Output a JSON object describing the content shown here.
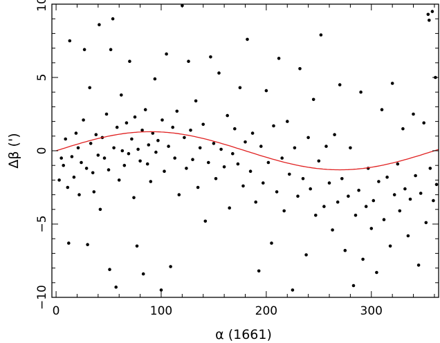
{
  "chart_data": {
    "type": "scatter",
    "xlabel": "α (1661)",
    "ylabel": "Δβ (')",
    "xlim": [
      -4,
      364
    ],
    "ylim": [
      -10,
      10
    ],
    "grid": false,
    "x_ticks": [
      {
        "value": 0,
        "label": "0"
      },
      {
        "value": 100,
        "label": "100"
      },
      {
        "value": 200,
        "label": "200"
      },
      {
        "value": 300,
        "label": "300"
      }
    ],
    "y_ticks": [
      {
        "value": 10,
        "label": "10"
      },
      {
        "value": 5,
        "label": "5"
      },
      {
        "value": 0,
        "label": "0"
      },
      {
        "value": -5,
        "label": "−5"
      },
      {
        "value": -10,
        "label": "−10"
      }
    ],
    "colors": {
      "points": "#000000",
      "curve": "#e02020"
    },
    "curve": {
      "function": "sine",
      "amplitude": 1.3,
      "period": 360,
      "phase": 0
    },
    "series": [
      {
        "points": [
          [
            3,
            -2
          ],
          [
            5,
            -0.5
          ],
          [
            7,
            -1
          ],
          [
            9,
            0.8
          ],
          [
            11,
            -2.5
          ],
          [
            12,
            -6.3
          ],
          [
            13,
            7.5
          ],
          [
            15,
            -0.4
          ],
          [
            17,
            -1.8
          ],
          [
            19,
            1.2
          ],
          [
            21,
            0.2
          ],
          [
            22,
            -3
          ],
          [
            24,
            -0.8
          ],
          [
            26,
            2.1
          ],
          [
            27,
            6.9
          ],
          [
            29,
            -1.2
          ],
          [
            30,
            -6.4
          ],
          [
            32,
            4.3
          ],
          [
            33,
            0.5
          ],
          [
            35,
            -1.5
          ],
          [
            36,
            -2.8
          ],
          [
            38,
            1.1
          ],
          [
            40,
            -0.3
          ],
          [
            41,
            8.6
          ],
          [
            42,
            -4
          ],
          [
            44,
            0.9
          ],
          [
            46,
            -0.5
          ],
          [
            48,
            2.5
          ],
          [
            50,
            -1.3
          ],
          [
            51,
            -8.1
          ],
          [
            52,
            6.9
          ],
          [
            54,
            9
          ],
          [
            55,
            0.2
          ],
          [
            57,
            -9.3
          ],
          [
            58,
            1.6
          ],
          [
            60,
            -2
          ],
          [
            62,
            3.8
          ],
          [
            63,
            0
          ],
          [
            65,
            -1
          ],
          [
            67,
            1.9
          ],
          [
            69,
            -0.2
          ],
          [
            70,
            6.1
          ],
          [
            72,
            0.8
          ],
          [
            74,
            -3.2
          ],
          [
            75,
            2.3
          ],
          [
            77,
            -6.5
          ],
          [
            78,
            0.1
          ],
          [
            80,
            -0.7
          ],
          [
            82,
            1.4
          ],
          [
            83,
            -8.4
          ],
          [
            85,
            2.8
          ],
          [
            87,
            -0.9
          ],
          [
            88,
            0.4
          ],
          [
            90,
            -2.1
          ],
          [
            92,
            1.2
          ],
          [
            94,
            4.9
          ],
          [
            95,
            -0.1
          ],
          [
            97,
            0.7
          ],
          [
            100,
            -9.5
          ],
          [
            101,
            2.1
          ],
          [
            103,
            -1.4
          ],
          [
            105,
            6.6
          ],
          [
            107,
            0.3
          ],
          [
            109,
            -7.9
          ],
          [
            111,
            1.6
          ],
          [
            113,
            -0.5
          ],
          [
            115,
            2.7
          ],
          [
            117,
            -3
          ],
          [
            120,
            9.9
          ],
          [
            122,
            0.9
          ],
          [
            124,
            -1.2
          ],
          [
            126,
            6.1
          ],
          [
            128,
            1.4
          ],
          [
            130,
            -0.6
          ],
          [
            133,
            3.4
          ],
          [
            135,
            -2.5
          ],
          [
            137,
            0.2
          ],
          [
            140,
            1.8
          ],
          [
            142,
            -4.8
          ],
          [
            145,
            -0.8
          ],
          [
            147,
            6.4
          ],
          [
            150,
            0.5
          ],
          [
            152,
            -1.9
          ],
          [
            155,
            5.3
          ],
          [
            157,
            0.1
          ],
          [
            160,
            -1.1
          ],
          [
            163,
            2.4
          ],
          [
            165,
            -3.9
          ],
          [
            168,
            -0.2
          ],
          [
            170,
            1.5
          ],
          [
            173,
            -0.9
          ],
          [
            175,
            4.3
          ],
          [
            178,
            -2.4
          ],
          [
            180,
            0.6
          ],
          [
            182,
            7.6
          ],
          [
            185,
            -1.4
          ],
          [
            187,
            1.2
          ],
          [
            190,
            -3.5
          ],
          [
            193,
            -8.2
          ],
          [
            195,
            0.3
          ],
          [
            197,
            -2.2
          ],
          [
            200,
            4.1
          ],
          [
            202,
            -0.8
          ],
          [
            205,
            -6.3
          ],
          [
            207,
            1.7
          ],
          [
            210,
            -2.8
          ],
          [
            212,
            6.3
          ],
          [
            215,
            -0.5
          ],
          [
            217,
            -4.1
          ],
          [
            220,
            2
          ],
          [
            222,
            -1.6
          ],
          [
            225,
            -9.5
          ],
          [
            227,
            0.2
          ],
          [
            230,
            -3.1
          ],
          [
            232,
            5.6
          ],
          [
            235,
            -1.9
          ],
          [
            238,
            -7.1
          ],
          [
            240,
            0.9
          ],
          [
            242,
            -2.6
          ],
          [
            245,
            3.5
          ],
          [
            247,
            -4.4
          ],
          [
            250,
            -0.7
          ],
          [
            252,
            7.9
          ],
          [
            255,
            -3.8
          ],
          [
            257,
            0.3
          ],
          [
            260,
            -2.2
          ],
          [
            263,
            -5.4
          ],
          [
            265,
            1.1
          ],
          [
            268,
            -3.5
          ],
          [
            270,
            4.5
          ],
          [
            272,
            -1.9
          ],
          [
            275,
            -6.8
          ],
          [
            278,
            -3.1
          ],
          [
            280,
            0.2
          ],
          [
            283,
            -9.2
          ],
          [
            285,
            -4.4
          ],
          [
            288,
            -2.7
          ],
          [
            290,
            4
          ],
          [
            292,
            -7.4
          ],
          [
            295,
            -3.8
          ],
          [
            297,
            -1.2
          ],
          [
            300,
            -5.3
          ],
          [
            302,
            -3.4
          ],
          [
            305,
            -8.3
          ],
          [
            307,
            -2.1
          ],
          [
            310,
            2.8
          ],
          [
            312,
            -4.7
          ],
          [
            315,
            -1.8
          ],
          [
            318,
            -6.5
          ],
          [
            320,
            4.6
          ],
          [
            322,
            -3
          ],
          [
            325,
            -0.9
          ],
          [
            327,
            -4.1
          ],
          [
            330,
            1.5
          ],
          [
            332,
            -2.6
          ],
          [
            335,
            -5.8
          ],
          [
            337,
            -3.3
          ],
          [
            340,
            2.5
          ],
          [
            342,
            -1.7
          ],
          [
            345,
            -7.8
          ],
          [
            347,
            -2.9
          ],
          [
            350,
            1.9
          ],
          [
            352,
            -4.9
          ],
          [
            354,
            9.3
          ],
          [
            355,
            8.9
          ],
          [
            356,
            -1.2
          ],
          [
            358,
            9.5
          ],
          [
            359,
            -3.4
          ],
          [
            361,
            5
          ],
          [
            362,
            -2.3
          ]
        ]
      }
    ]
  }
}
